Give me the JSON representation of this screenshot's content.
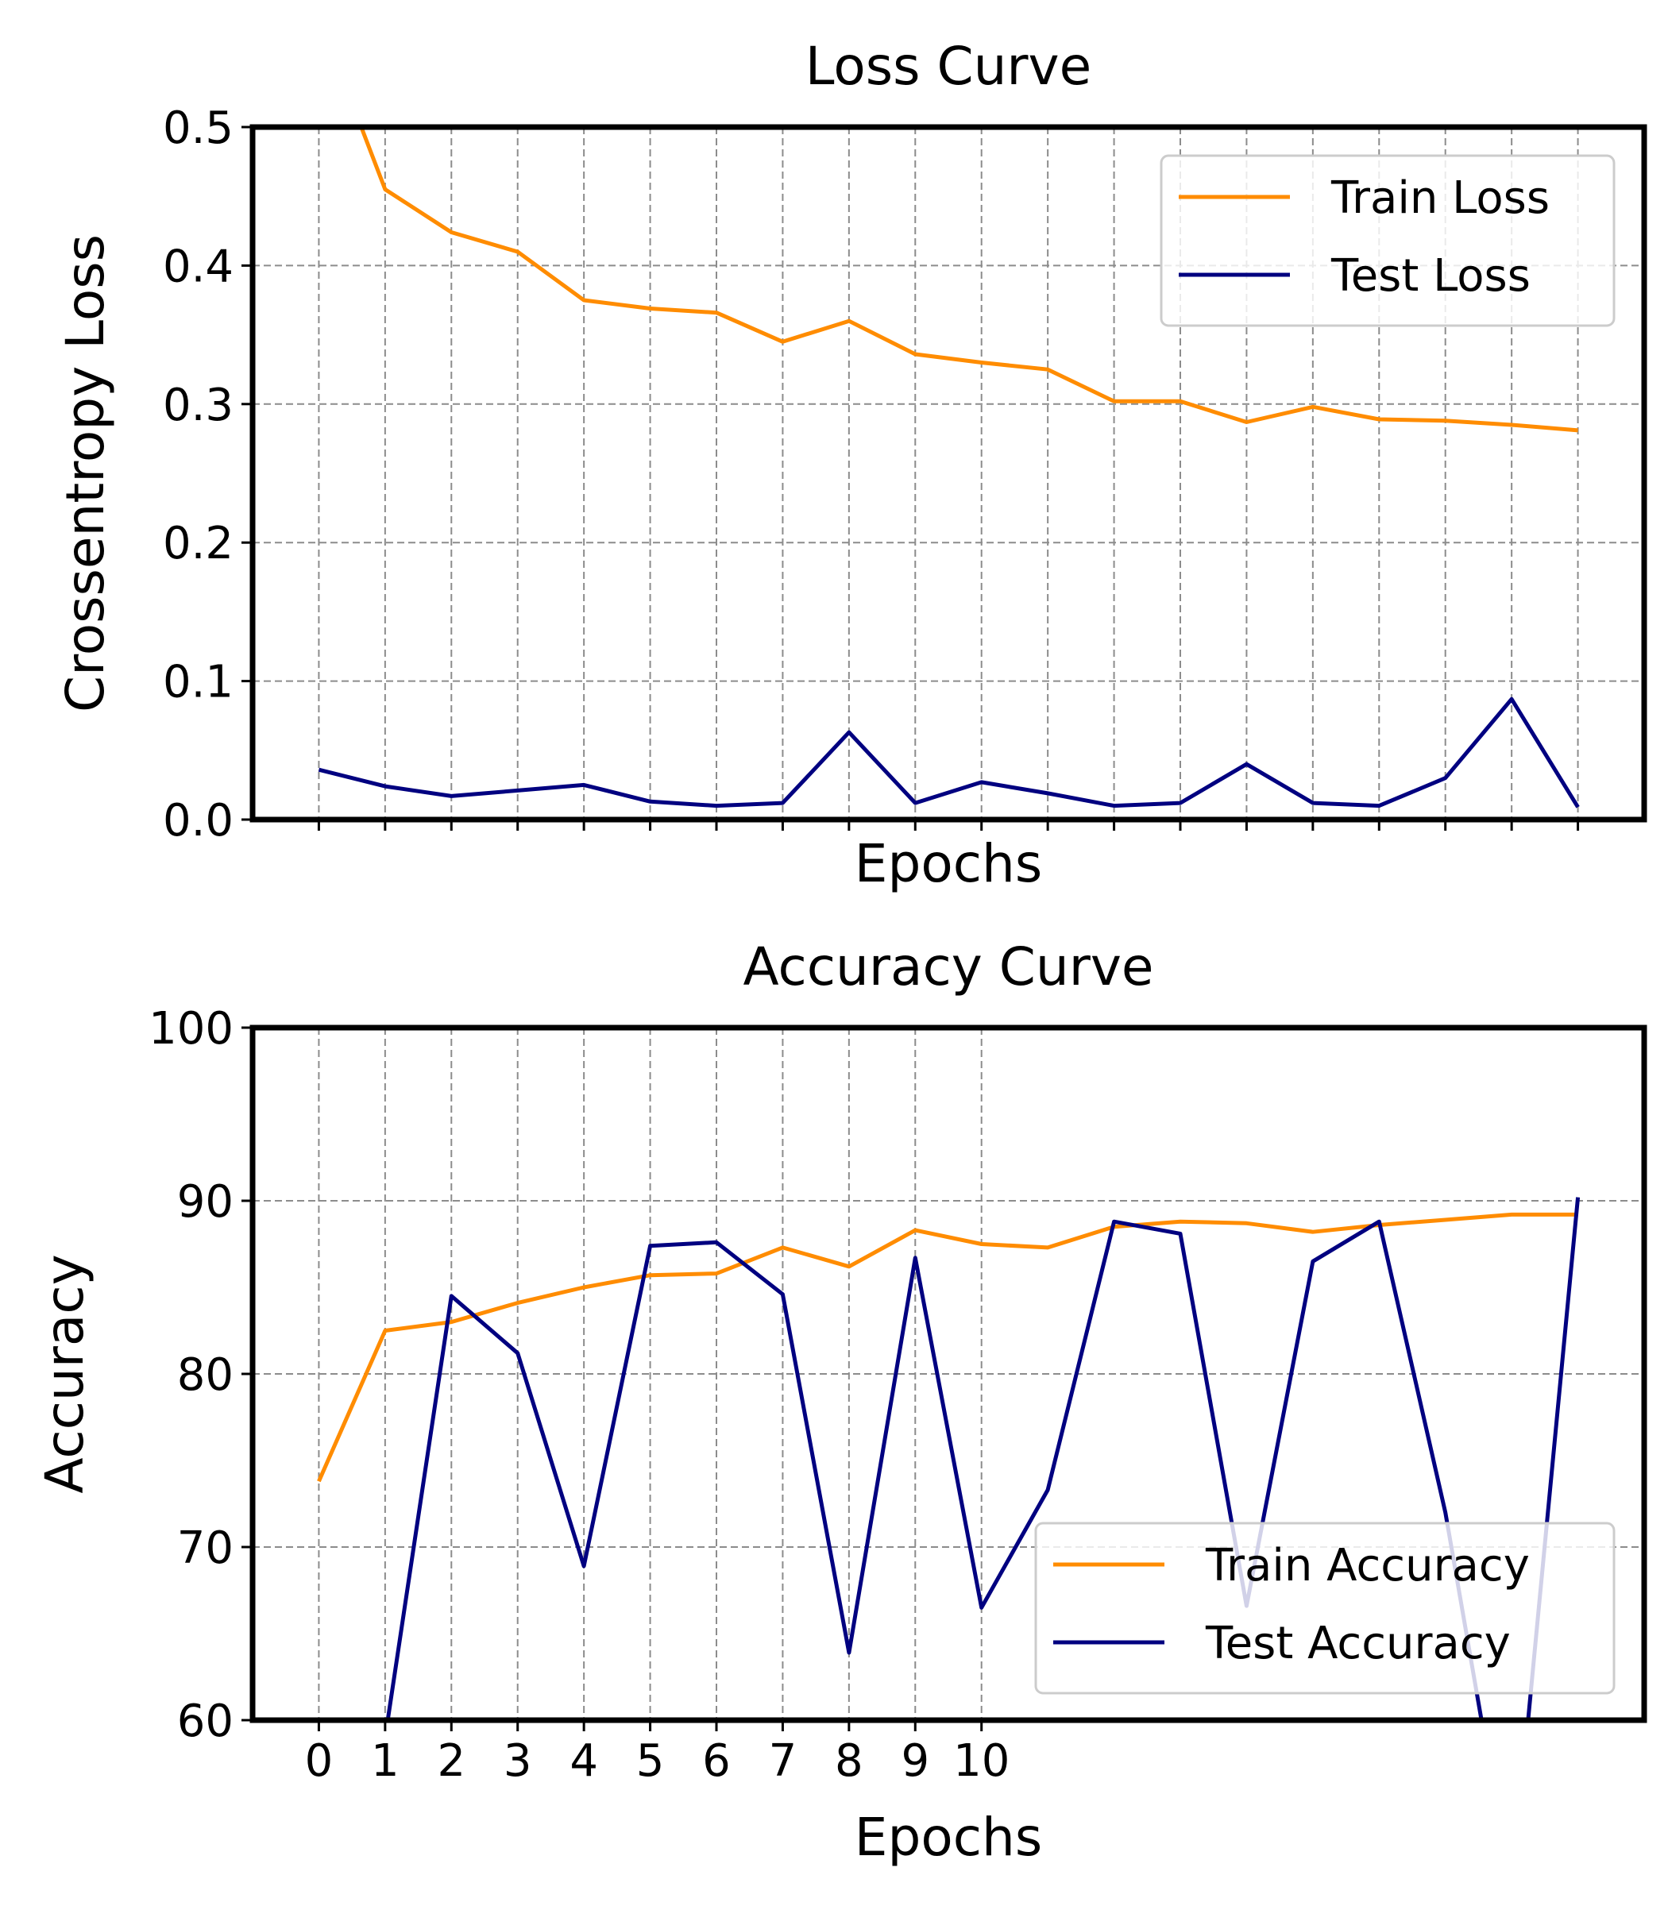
{
  "chart_data": [
    {
      "type": "line",
      "title": "Loss Curve",
      "xlabel": "Epochs",
      "ylabel": "Crossentropy Loss",
      "x": [
        0,
        1,
        2,
        3,
        4,
        5,
        6,
        7,
        8,
        9,
        10,
        11,
        12,
        13,
        14,
        15,
        16,
        17,
        18,
        19
      ],
      "xlim": [
        -1,
        20
      ],
      "ylim": [
        0,
        0.5
      ],
      "xticks": [
        0,
        1,
        2,
        3,
        4,
        5,
        6,
        7,
        8,
        9,
        10,
        11,
        12,
        13,
        14,
        15,
        16,
        17,
        18,
        19
      ],
      "xtick_labels": [],
      "yticks": [
        0.0,
        0.1,
        0.2,
        0.3,
        0.4,
        0.5
      ],
      "ytick_labels": [
        "0.0",
        "0.1",
        "0.2",
        "0.3",
        "0.4",
        "0.5"
      ],
      "grid": true,
      "legend_position": "top-right",
      "series": [
        {
          "name": "Train Loss",
          "color": "#ff8c00",
          "values": [
            0.58,
            0.455,
            0.424,
            0.41,
            0.375,
            0.369,
            0.366,
            0.345,
            0.36,
            0.336,
            0.33,
            0.325,
            0.302,
            0.302,
            0.287,
            0.298,
            0.289,
            0.288,
            0.285,
            0.281
          ]
        },
        {
          "name": "Test Loss",
          "color": "#000080",
          "values": [
            0.036,
            0.024,
            0.017,
            0.021,
            0.025,
            0.013,
            0.01,
            0.012,
            0.063,
            0.012,
            0.027,
            0.019,
            0.01,
            0.012,
            0.04,
            0.012,
            0.01,
            0.03,
            0.087,
            0.009
          ]
        }
      ]
    },
    {
      "type": "line",
      "title": "Accuracy Curve",
      "xlabel": "Epochs",
      "ylabel": "Accuracy",
      "x": [
        0,
        1,
        2,
        3,
        4,
        5,
        6,
        7,
        8,
        9,
        10,
        11,
        12,
        13,
        14,
        15,
        16,
        17,
        18,
        19
      ],
      "xlim": [
        -1,
        20
      ],
      "ylim": [
        60,
        100
      ],
      "xticks": [
        0,
        1,
        2,
        3,
        4,
        5,
        6,
        7,
        8,
        9,
        10
      ],
      "xtick_labels": [
        "0",
        "1",
        "2",
        "3",
        "4",
        "5",
        "6",
        "7",
        "8",
        "9",
        "10"
      ],
      "yticks": [
        60,
        70,
        80,
        90,
        100
      ],
      "ytick_labels": [
        "60",
        "70",
        "80",
        "90",
        "100"
      ],
      "grid": true,
      "legend_position": "bottom-right",
      "series": [
        {
          "name": "Train Accuracy",
          "color": "#ff8c00",
          "values": [
            73.8,
            82.5,
            83.0,
            84.1,
            85.0,
            85.7,
            85.8,
            87.3,
            86.2,
            88.3,
            87.5,
            87.3,
            88.5,
            88.8,
            88.7,
            88.2,
            88.6,
            88.9,
            89.2,
            89.2
          ]
        },
        {
          "name": "Test Accuracy",
          "color": "#000080",
          "values": [
            50.0,
            59.0,
            84.5,
            81.2,
            68.9,
            87.4,
            87.6,
            84.6,
            63.9,
            86.7,
            66.5,
            73.3,
            88.8,
            88.1,
            66.6,
            86.5,
            88.8,
            72.0,
            50.0,
            90.2
          ]
        }
      ]
    }
  ]
}
